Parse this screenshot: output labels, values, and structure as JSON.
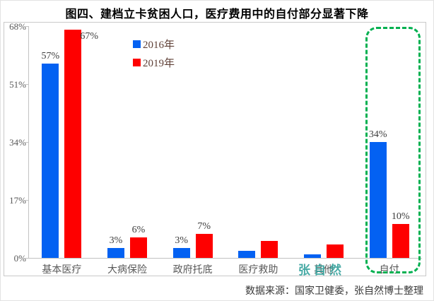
{
  "title": "图四、建档立卡贫困人口，医疗费用中的自付部分显著下降",
  "watermark": "张自然",
  "source": "数据来源：国家卫健委，张自然博士整理",
  "colors": {
    "bar_2016": "#0361f2",
    "bar_2019": "#fe0000",
    "highlight_green": "#00b050",
    "watermark_teal": "#2e9e98",
    "axis_gray": "#c2c2c2"
  },
  "chart_data": {
    "type": "bar",
    "title": "图四、建档立卡贫困人口，医疗费用中的自付部分显著下降",
    "categories": [
      "基本医疗",
      "大病保险",
      "政府托底",
      "医疗救助",
      "其他",
      "自付"
    ],
    "series": [
      {
        "name": "2016年",
        "color": "#0361f2",
        "values": [
          57,
          3,
          3,
          2,
          1,
          34
        ],
        "labels": [
          "57%",
          "3%",
          "3%",
          null,
          null,
          "34%"
        ],
        "label_sides": [
          "above",
          "above",
          "above",
          null,
          null,
          "above"
        ]
      },
      {
        "name": "2019年",
        "color": "#fe0000",
        "values": [
          67,
          6,
          7,
          5,
          4,
          10
        ],
        "labels": [
          "67%",
          "6%",
          "7%",
          null,
          null,
          "10%"
        ],
        "label_sides": [
          "right",
          "above",
          "above",
          null,
          null,
          "above"
        ]
      }
    ],
    "xlabel": "",
    "ylabel": "",
    "ylim": [
      0,
      68
    ],
    "ytick_values": [
      0,
      17,
      34,
      51,
      68
    ],
    "ytick_labels": [
      "0%",
      "17%",
      "34%",
      "51%",
      "68%"
    ],
    "grid": false,
    "legend_position": "top-left-inside",
    "annotation": {
      "type": "dashed-box",
      "target_category": "自付",
      "color": "#00b050"
    }
  }
}
